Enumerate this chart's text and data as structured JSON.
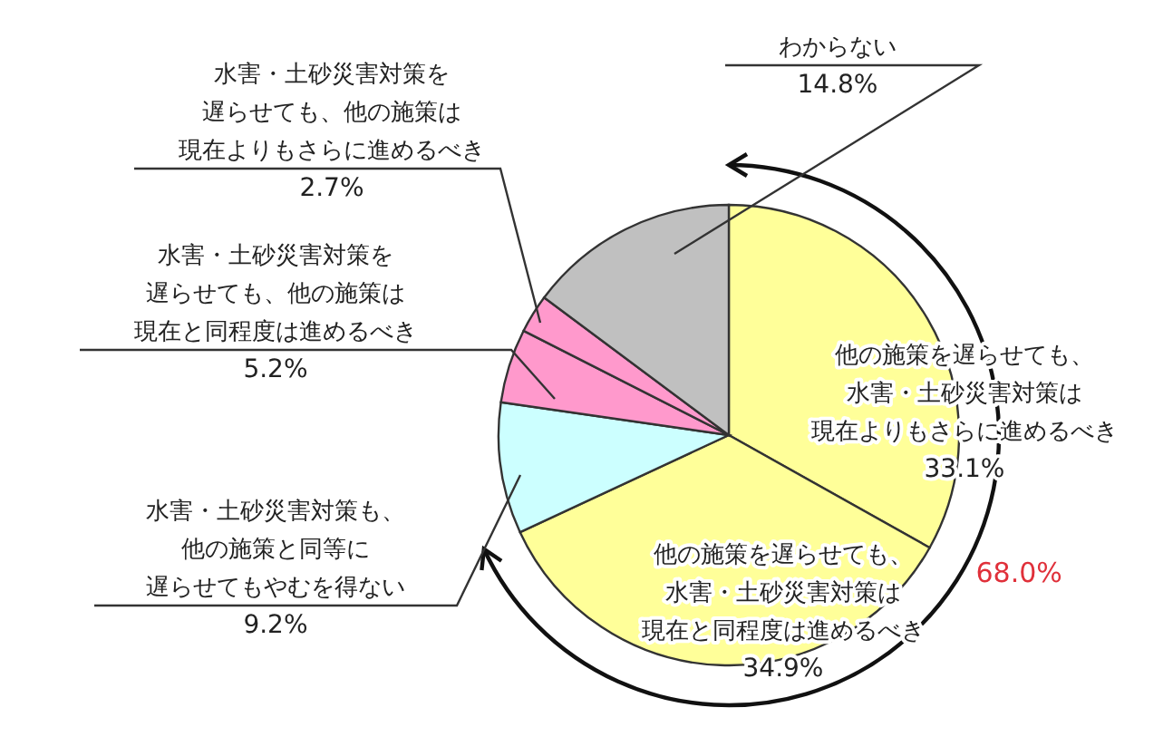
{
  "chart_data": {
    "type": "pie",
    "categories": [
      "他の施策を遅らせても、水害・土砂災害対策は現在よりもさらに進めるべき",
      "他の施策を遅らせても、水害・土砂災害対策は現在と同程度は進めるべき",
      "水害・土砂災害対策も、他の施策と同等に遅らせてもやむを得ない",
      "水害・土砂災害対策を遅らせても、他の施策は現在と同程度は進めるべき",
      "水害・土砂災害対策を遅らせても、他の施策は現在よりもさらに進めるべき",
      "わからない"
    ],
    "values": [
      33.1,
      34.9,
      9.2,
      5.2,
      2.7,
      14.8
    ],
    "value_labels": [
      "33.1%",
      "34.9%",
      "9.2%",
      "5.2%",
      "2.7%",
      "14.8%"
    ],
    "colors": [
      "#ffff99",
      "#ffff99",
      "#ccffff",
      "#ff99cc",
      "#ff99cc",
      "#c0c0c0"
    ],
    "annotations": [
      "68.0%"
    ]
  }
}
